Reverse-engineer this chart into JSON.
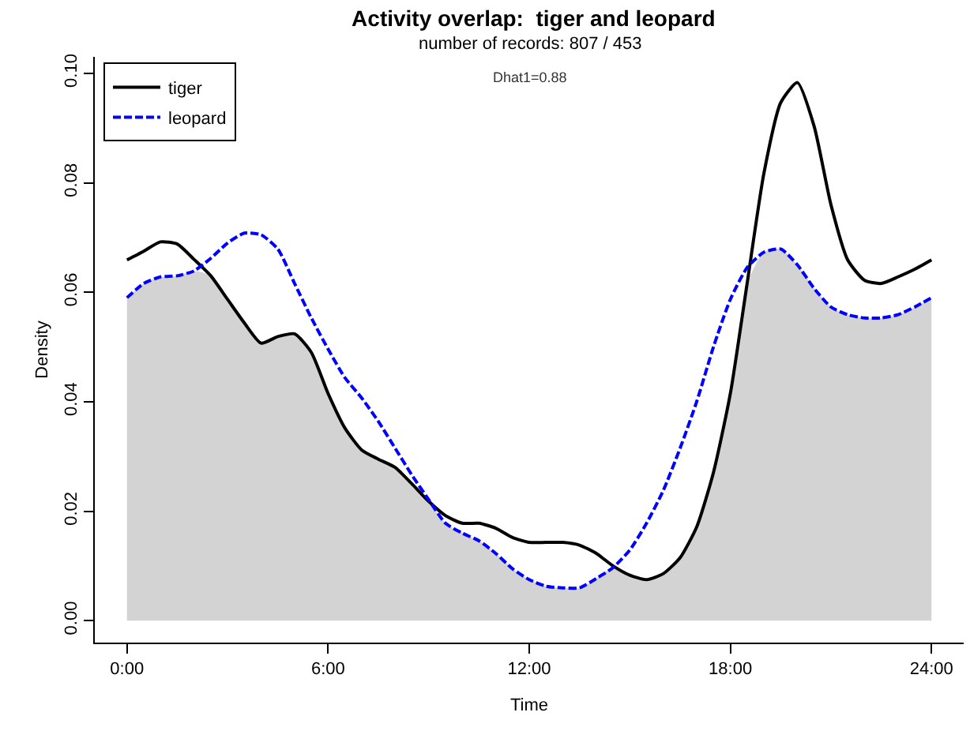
{
  "chart_data": {
    "type": "line",
    "title": "Activity overlap:  tiger and leopard",
    "subtitle": "number of records: 807 / 453",
    "xlabel": "Time",
    "ylabel": "Density",
    "annotations": [
      "Dhat1=0.88"
    ],
    "x": [
      0,
      0.5,
      1,
      1.5,
      2,
      2.5,
      3,
      3.5,
      4,
      4.5,
      5,
      5.5,
      6,
      6.5,
      7,
      7.5,
      8,
      8.5,
      9,
      9.5,
      10,
      10.5,
      11,
      11.5,
      12,
      12.5,
      13,
      13.5,
      14,
      14.5,
      15,
      15.5,
      16,
      16.5,
      17,
      17.5,
      18,
      18.5,
      19,
      19.5,
      20,
      20.5,
      21,
      21.5,
      22,
      22.5,
      23,
      23.5,
      24
    ],
    "series": [
      {
        "type": "area",
        "color": "#d3d3d3",
        "values": [
          0.059,
          0.0616,
          0.0628,
          0.063,
          0.0639,
          0.063,
          0.0587,
          0.0544,
          0.0507,
          0.0519,
          0.0524,
          0.049,
          0.0415,
          0.0352,
          0.0312,
          0.0295,
          0.028,
          0.025,
          0.0218,
          0.0178,
          0.016,
          0.0146,
          0.0123,
          0.0095,
          0.0075,
          0.0063,
          0.006,
          0.006,
          0.0077,
          0.0097,
          0.0083,
          0.0075,
          0.0086,
          0.0115,
          0.0172,
          0.0272,
          0.0415,
          0.0616,
          0.0673,
          0.0679,
          0.065,
          0.0607,
          0.0573,
          0.0559,
          0.0553,
          0.0553,
          0.0559,
          0.0573,
          0.059
        ]
      },
      {
        "name": "tiger",
        "color": "#000000",
        "line_style": "solid",
        "values": [
          0.0659,
          0.0675,
          0.0692,
          0.0688,
          0.066,
          0.063,
          0.0587,
          0.0544,
          0.0507,
          0.0519,
          0.0524,
          0.049,
          0.0415,
          0.0352,
          0.0312,
          0.0295,
          0.028,
          0.025,
          0.0218,
          0.0192,
          0.0178,
          0.0178,
          0.0169,
          0.0152,
          0.0143,
          0.0143,
          0.0143,
          0.0138,
          0.0123,
          0.01,
          0.0083,
          0.0075,
          0.0086,
          0.0115,
          0.0172,
          0.0272,
          0.0415,
          0.0616,
          0.0817,
          0.0946,
          0.0983,
          0.0903,
          0.076,
          0.0659,
          0.0622,
          0.0616,
          0.0628,
          0.0642,
          0.0659
        ]
      },
      {
        "name": "leopard",
        "color": "#0000ff",
        "line_style": "dashed",
        "values": [
          0.059,
          0.0616,
          0.0628,
          0.063,
          0.0639,
          0.0662,
          0.069,
          0.0708,
          0.0705,
          0.0679,
          0.0616,
          0.0553,
          0.0496,
          0.0444,
          0.0407,
          0.0364,
          0.0315,
          0.0266,
          0.0221,
          0.0178,
          0.016,
          0.0146,
          0.0123,
          0.0095,
          0.0075,
          0.0063,
          0.006,
          0.006,
          0.0077,
          0.0097,
          0.0129,
          0.0178,
          0.0238,
          0.0315,
          0.0401,
          0.0501,
          0.0587,
          0.0645,
          0.0673,
          0.0679,
          0.065,
          0.0607,
          0.0573,
          0.0559,
          0.0553,
          0.0553,
          0.0559,
          0.0573,
          0.059
        ]
      }
    ],
    "xlim": [
      -0.96,
      24.96
    ],
    "xticks": [
      {
        "value": 0,
        "label": "0:00"
      },
      {
        "value": 6,
        "label": "6:00"
      },
      {
        "value": 12,
        "label": "12:00"
      },
      {
        "value": 18,
        "label": "18:00"
      },
      {
        "value": 24,
        "label": "24:00"
      }
    ],
    "ylim": [
      -0.004,
      0.103
    ],
    "yticks": [
      {
        "value": 0,
        "label": "0.00"
      },
      {
        "value": 0.02,
        "label": "0.02"
      },
      {
        "value": 0.04,
        "label": "0.04"
      },
      {
        "value": 0.06,
        "label": "0.06"
      },
      {
        "value": 0.08,
        "label": "0.08"
      },
      {
        "value": 0.1,
        "label": "0.10"
      }
    ],
    "grid": false,
    "legend": "top left",
    "marker": "none"
  }
}
